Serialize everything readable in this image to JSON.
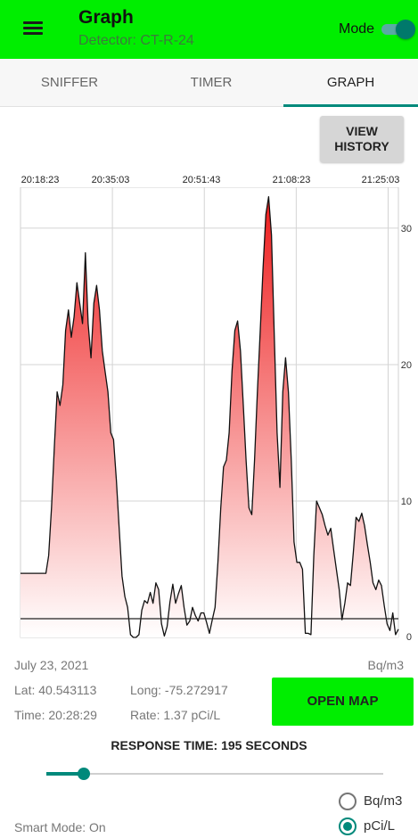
{
  "app_bar": {
    "title": "Graph",
    "subtitle": "Detector: CT-R-24",
    "mode_label": "Mode",
    "mode_on": true,
    "menu_icon": "hamburger-menu-icon",
    "colors": {
      "background": "#00ee00",
      "accent": "#00796b"
    }
  },
  "tabs": [
    {
      "label": "SNIFFER",
      "active": false
    },
    {
      "label": "TIMER",
      "active": false
    },
    {
      "label": "GRAPH",
      "active": true
    }
  ],
  "view_history_label": "VIEW\nHISTORY",
  "chart_data": {
    "type": "area",
    "x_ticks": [
      "20:18:23",
      "20:35:03",
      "20:51:43",
      "21:08:23",
      "21:25:03"
    ],
    "y_ticks": [
      0,
      10,
      20,
      30
    ],
    "ylim": [
      0,
      33
    ],
    "grid": true,
    "threshold": 1.37,
    "colors": {
      "fill_top": "#ee1c1c",
      "fill_bottom": "#ffffff",
      "line": "#111111"
    },
    "series": [
      {
        "values": [
          4.7,
          4.7,
          4.7,
          4.7,
          4.7,
          4.7,
          4.7,
          4.7,
          4.7,
          4.7,
          6,
          9.5,
          14,
          18,
          17,
          18.5,
          22.5,
          24,
          22,
          23.5,
          26,
          24.5,
          23,
          28.2,
          23,
          20.5,
          24.5,
          25.8,
          24,
          21,
          19.5,
          18,
          15,
          14.5,
          11.5,
          8,
          4.5,
          3,
          2.2,
          0.2,
          0,
          0,
          0.2,
          2,
          2.7,
          2.5,
          3.3,
          2.5,
          4,
          3.5,
          1,
          0.1,
          0.8,
          2.6,
          3.9,
          2.5,
          3.2,
          3.8,
          2.2,
          0.9,
          1.2,
          2.2,
          1.6,
          1.2,
          1.8,
          1.8,
          1.1,
          0.3,
          1.3,
          2.2,
          5.5,
          9.5,
          12.5,
          13,
          15,
          19.5,
          22.5,
          23.2,
          21,
          17,
          13,
          9.5,
          9,
          13,
          18,
          22.5,
          27,
          31,
          32.3,
          29.5,
          22,
          15,
          11,
          18,
          20.5,
          18,
          13,
          7,
          5.5,
          5.5,
          5,
          0.3,
          0.3,
          0.2,
          6,
          10,
          9.5,
          9,
          8.2,
          7.5,
          8,
          6.5,
          5,
          3.5,
          1.3,
          2.5,
          4,
          3.8,
          6.2,
          8.8,
          8.5,
          9.1,
          8.2,
          6.8,
          5.5,
          4,
          3.5,
          4.2,
          3.8,
          2.3,
          1,
          0.5,
          1.8,
          0.2,
          0.6
        ]
      }
    ]
  },
  "info": {
    "date": "July 23, 2021",
    "unit_display": "Bq/m3",
    "lat": "Lat: 40.543113",
    "long": "Long: -75.272917",
    "time": "Time: 20:28:29",
    "rate": "Rate: 1.37 pCi/L",
    "open_map_label": "OPEN MAP",
    "response_time_label": "RESPONSE TIME: 195 SECONDS",
    "response_slider_fraction": 0.11,
    "smart_mode": "Smart Mode: On"
  },
  "unit_options": [
    {
      "label": "Bq/m3",
      "selected": false
    },
    {
      "label": "pCi/L",
      "selected": true
    }
  ]
}
